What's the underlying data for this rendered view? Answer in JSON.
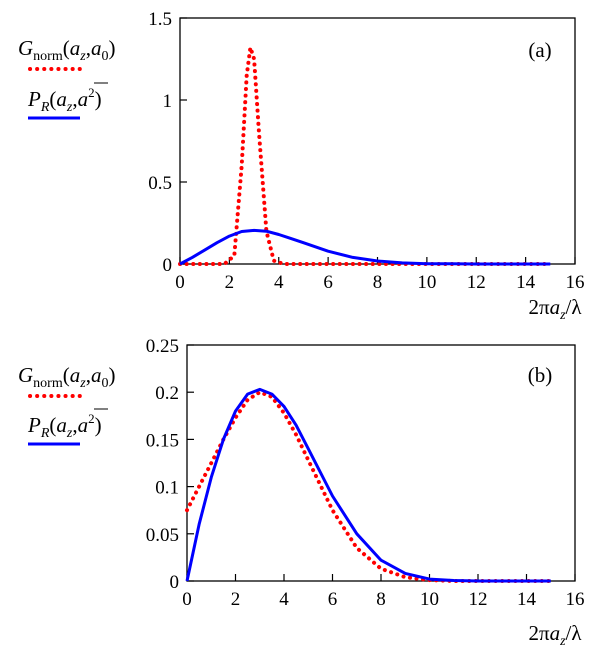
{
  "chart_data": [
    {
      "type": "line",
      "panel_label": "(a)",
      "xlabel": "2πa_z/λ",
      "xlim": [
        0,
        16
      ],
      "ylim": [
        0,
        1.5
      ],
      "xticks": [
        "0",
        "2",
        "4",
        "6",
        "8",
        "10",
        "12",
        "14",
        "16"
      ],
      "yticks": [
        "0",
        "0.5",
        "1",
        "1.5"
      ],
      "grid": false,
      "legend_position": "left",
      "series": [
        {
          "name": "G_norm(a_z,a_0)",
          "color": "#ff0000",
          "style": "dotted",
          "x": [
            0,
            1,
            1.8,
            2.2,
            2.5,
            2.7,
            2.85,
            3.0,
            3.2,
            3.5,
            3.8,
            4.2,
            5,
            6,
            8,
            10,
            15
          ],
          "y": [
            0,
            0,
            0.0,
            0.05,
            0.6,
            1.15,
            1.32,
            1.25,
            0.8,
            0.2,
            0.02,
            0,
            0,
            0,
            0,
            0,
            0
          ]
        },
        {
          "name": "P_R(a_z,a²)",
          "color": "#0000ff",
          "style": "solid",
          "x": [
            0,
            0.5,
            1,
            1.5,
            2,
            2.5,
            3,
            3.5,
            4,
            4.5,
            5,
            6,
            7,
            8,
            9,
            10,
            11,
            12,
            13,
            14,
            15
          ],
          "y": [
            0,
            0.04,
            0.085,
            0.13,
            0.17,
            0.198,
            0.205,
            0.2,
            0.18,
            0.155,
            0.13,
            0.078,
            0.04,
            0.018,
            0.007,
            0.002,
            0.001,
            0,
            0,
            0,
            0
          ]
        }
      ]
    },
    {
      "type": "line",
      "panel_label": "(b)",
      "xlabel": "2πa_z/λ",
      "xlim": [
        0,
        16
      ],
      "ylim": [
        0,
        0.25
      ],
      "xticks": [
        "0",
        "2",
        "4",
        "6",
        "8",
        "10",
        "12",
        "14",
        "16"
      ],
      "yticks": [
        "0",
        "0.05",
        "0.1",
        "0.15",
        "0.2",
        "0.25"
      ],
      "grid": false,
      "legend_position": "left",
      "series": [
        {
          "name": "G_norm(a_z,a_0)",
          "color": "#ff0000",
          "style": "dotted",
          "x": [
            0,
            0.5,
            1,
            1.5,
            2,
            2.5,
            3,
            3.5,
            4,
            4.5,
            5,
            6,
            7,
            8,
            9,
            10,
            11,
            12,
            13,
            14,
            15
          ],
          "y": [
            0.075,
            0.1,
            0.125,
            0.15,
            0.173,
            0.192,
            0.2,
            0.195,
            0.178,
            0.155,
            0.128,
            0.075,
            0.035,
            0.013,
            0.004,
            0.001,
            0,
            0,
            0,
            0,
            0
          ]
        },
        {
          "name": "P_R(a_z,a²)",
          "color": "#0000ff",
          "style": "solid",
          "x": [
            0,
            0.5,
            1,
            1.5,
            2,
            2.5,
            3,
            3.5,
            4,
            4.5,
            5,
            6,
            7,
            8,
            9,
            10,
            11,
            12,
            13,
            14,
            15
          ],
          "y": [
            0,
            0.06,
            0.11,
            0.15,
            0.18,
            0.198,
            0.203,
            0.198,
            0.185,
            0.165,
            0.14,
            0.09,
            0.05,
            0.022,
            0.008,
            0.002,
            0.0005,
            0,
            0,
            0,
            0
          ]
        }
      ]
    }
  ]
}
